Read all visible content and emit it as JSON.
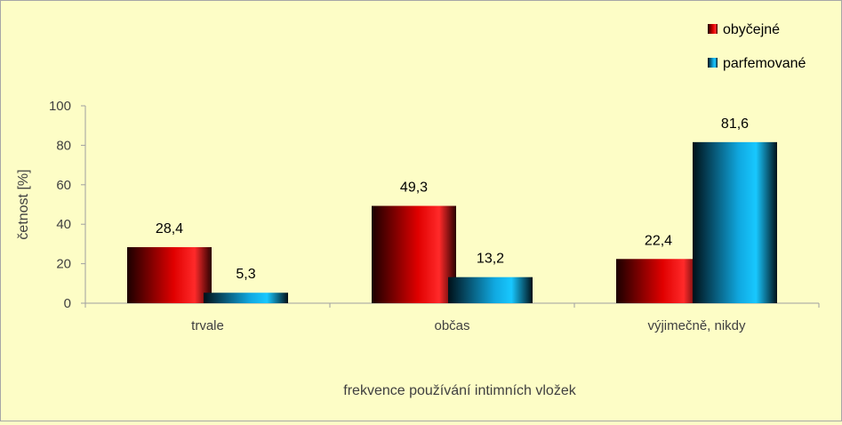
{
  "chart_data": {
    "type": "bar",
    "title": "",
    "xlabel": "frekvence používání intimních vložek",
    "ylabel": "četnost [%]",
    "ylim": [
      0,
      100
    ],
    "yticks": [
      0,
      20,
      40,
      60,
      80,
      100
    ],
    "categories": [
      "trvale",
      "občas",
      "výjimečně, nikdy"
    ],
    "series": [
      {
        "name": "obyčejné",
        "values": [
          28.4,
          49.3,
          22.4
        ],
        "labels": [
          "28,4",
          "49,3",
          "22,4"
        ]
      },
      {
        "name": "parfemované",
        "values": [
          5.3,
          13.2,
          81.6
        ],
        "labels": [
          "5,3",
          "13,2",
          "81,6"
        ]
      }
    ],
    "grid": false,
    "legend_position": "top-right",
    "colors": {
      "series_0": [
        "#1a0000",
        "#e00000",
        "#ff2020",
        "#300000"
      ],
      "series_1": [
        "#001018",
        "#10a8e0",
        "#00c8ff",
        "#001018"
      ],
      "background": "#fdfdc6",
      "axis": "#a0a0a0"
    }
  }
}
